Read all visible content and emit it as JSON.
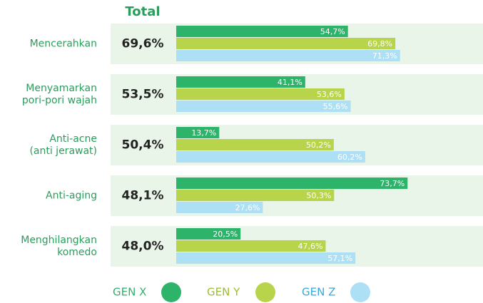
{
  "chart_data": {
    "type": "bar",
    "orientation": "horizontal",
    "total_title": "Total",
    "categories": [
      "Mencerahkan",
      "Menyamarkan\npori-pori wajah",
      "Anti-acne\n(anti jerawat)",
      "Anti-aging",
      "Menghilangkan\nkomedo"
    ],
    "totals": [
      69.6,
      53.5,
      50.4,
      48.1,
      48.0
    ],
    "totals_labels": [
      "69,6%",
      "53,5%",
      "50,4%",
      "48,1%",
      "48,0%"
    ],
    "series": [
      {
        "name": "GEN X",
        "color": "#2db46a",
        "values": [
          54.7,
          41.1,
          13.7,
          73.7,
          20.5
        ],
        "value_labels": [
          "54,7%",
          "41,1%",
          "13,7%",
          "73,7%",
          "20,5%"
        ]
      },
      {
        "name": "GEN Y",
        "color": "#b8d44a",
        "values": [
          69.8,
          53.6,
          50.2,
          50.3,
          47.6
        ],
        "value_labels": [
          "69,8%",
          "53,6%",
          "50,2%",
          "50,3%",
          "47,6%"
        ]
      },
      {
        "name": "GEN Z",
        "color": "#aee0f5",
        "values": [
          71.3,
          55.6,
          60.2,
          27.6,
          57.1
        ],
        "value_labels": [
          "71,3%",
          "55,6%",
          "60,2%",
          "27,6%",
          "57,1%"
        ]
      }
    ]
  }
}
